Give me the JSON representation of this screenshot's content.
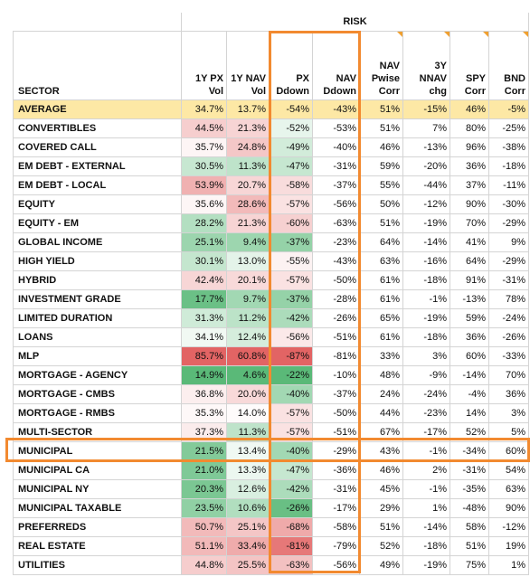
{
  "header": {
    "group": "RISK",
    "columns": [
      [
        "SECTOR"
      ],
      [
        "1Y PX",
        "Vol"
      ],
      [
        "1Y NAV",
        "Vol"
      ],
      [
        "PX",
        "Ddown"
      ],
      [
        "NAV",
        "Ddown"
      ],
      [
        "NAV",
        "Pwise",
        "Corr"
      ],
      [
        "3Y",
        "NNAV",
        "chg"
      ],
      [
        "SPY",
        "Corr"
      ],
      [
        "BND",
        "Corr"
      ]
    ]
  },
  "table": {
    "rows": [
      [
        "AVERAGE",
        "34.7%",
        "13.7%",
        "-54%",
        "-43%",
        "51%",
        "-15%",
        "46%",
        "-5%"
      ],
      [
        "CONVERTIBLES",
        "44.5%",
        "21.3%",
        "-52%",
        "-53%",
        "51%",
        "7%",
        "80%",
        "-25%"
      ],
      [
        "COVERED CALL",
        "35.7%",
        "24.8%",
        "-49%",
        "-40%",
        "46%",
        "-13%",
        "96%",
        "-38%"
      ],
      [
        "EM DEBT - EXTERNAL",
        "30.5%",
        "11.3%",
        "-47%",
        "-31%",
        "59%",
        "-20%",
        "36%",
        "-18%"
      ],
      [
        "EM DEBT - LOCAL",
        "53.9%",
        "20.7%",
        "-58%",
        "-37%",
        "55%",
        "-44%",
        "37%",
        "-11%"
      ],
      [
        "EQUITY",
        "35.6%",
        "28.6%",
        "-57%",
        "-56%",
        "50%",
        "-12%",
        "90%",
        "-30%"
      ],
      [
        "EQUITY - EM",
        "28.2%",
        "21.3%",
        "-60%",
        "-63%",
        "51%",
        "-19%",
        "70%",
        "-29%"
      ],
      [
        "GLOBAL INCOME",
        "25.1%",
        "9.4%",
        "-37%",
        "-23%",
        "64%",
        "-14%",
        "41%",
        "9%"
      ],
      [
        "HIGH YIELD",
        "30.1%",
        "13.0%",
        "-55%",
        "-43%",
        "63%",
        "-16%",
        "64%",
        "-29%"
      ],
      [
        "HYBRID",
        "42.4%",
        "20.1%",
        "-57%",
        "-50%",
        "61%",
        "-18%",
        "91%",
        "-31%"
      ],
      [
        "INVESTMENT GRADE",
        "17.7%",
        "9.7%",
        "-37%",
        "-28%",
        "61%",
        "-1%",
        "-13%",
        "78%"
      ],
      [
        "LIMITED DURATION",
        "31.3%",
        "11.2%",
        "-42%",
        "-26%",
        "65%",
        "-19%",
        "59%",
        "-24%"
      ],
      [
        "LOANS",
        "34.1%",
        "12.4%",
        "-56%",
        "-51%",
        "61%",
        "-18%",
        "36%",
        "-26%"
      ],
      [
        "MLP",
        "85.7%",
        "60.8%",
        "-87%",
        "-81%",
        "33%",
        "3%",
        "60%",
        "-33%"
      ],
      [
        "MORTGAGE - AGENCY",
        "14.9%",
        "4.6%",
        "-22%",
        "-10%",
        "48%",
        "-9%",
        "-14%",
        "70%"
      ],
      [
        "MORTGAGE - CMBS",
        "36.8%",
        "20.0%",
        "-40%",
        "-37%",
        "24%",
        "-24%",
        "-4%",
        "36%"
      ],
      [
        "MORTGAGE - RMBS",
        "35.3%",
        "14.0%",
        "-57%",
        "-50%",
        "44%",
        "-23%",
        "14%",
        "3%"
      ],
      [
        "MULTI-SECTOR",
        "37.3%",
        "11.3%",
        "-57%",
        "-51%",
        "67%",
        "-17%",
        "52%",
        "5%"
      ],
      [
        "MUNICIPAL",
        "21.5%",
        "13.4%",
        "-40%",
        "-29%",
        "43%",
        "-1%",
        "-34%",
        "60%"
      ],
      [
        "MUNICIPAL CA",
        "21.0%",
        "13.3%",
        "-47%",
        "-36%",
        "46%",
        "2%",
        "-31%",
        "54%"
      ],
      [
        "MUNICIPAL NY",
        "20.3%",
        "12.6%",
        "-42%",
        "-31%",
        "45%",
        "-1%",
        "-35%",
        "63%"
      ],
      [
        "MUNICIPAL TAXABLE",
        "23.5%",
        "10.6%",
        "-26%",
        "-17%",
        "29%",
        "1%",
        "-48%",
        "90%"
      ],
      [
        "PREFERREDS",
        "50.7%",
        "25.1%",
        "-68%",
        "-58%",
        "51%",
        "-14%",
        "58%",
        "-12%"
      ],
      [
        "REAL ESTATE",
        "51.1%",
        "33.4%",
        "-81%",
        "-79%",
        "52%",
        "-18%",
        "51%",
        "19%"
      ],
      [
        "UTILITIES",
        "44.8%",
        "25.5%",
        "-63%",
        "-56%",
        "49%",
        "-19%",
        "75%",
        "1%"
      ]
    ]
  }
}
